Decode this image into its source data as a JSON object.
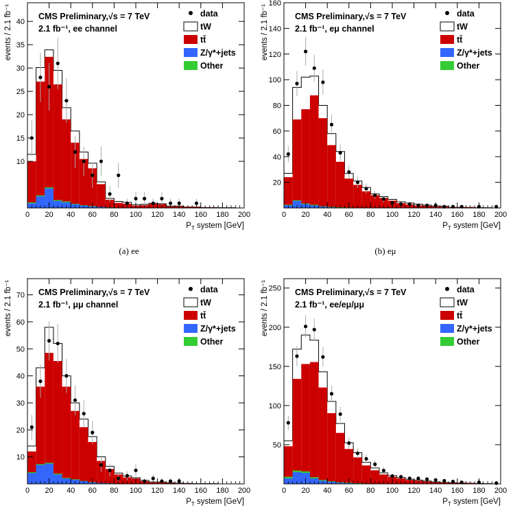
{
  "chart_data": [
    {
      "type": "bar",
      "caption": "(a) ee",
      "title": "CMS Preliminary,√s = 7 TeV",
      "subtitle": "2.1 fb⁻¹, ee channel",
      "xlabel": "P_T system [GeV]",
      "ylabel": "events / 2.1 fb⁻¹",
      "xlim": [
        0,
        200
      ],
      "ylim": [
        0,
        44
      ],
      "xticks": [
        0,
        20,
        40,
        60,
        80,
        100,
        120,
        140,
        160,
        180,
        200
      ],
      "yticks": [
        10,
        15,
        20,
        25,
        30,
        35,
        40
      ],
      "bin_edges": [
        0,
        8,
        16,
        24,
        32,
        40,
        48,
        56,
        64,
        72,
        80,
        88,
        96,
        104,
        112,
        120,
        128,
        136,
        144,
        152,
        160,
        168,
        176,
        184,
        192,
        200
      ],
      "legend": [
        "data",
        "tW",
        "tt̄",
        "Z/γ*+jets",
        "Other"
      ],
      "series": [
        {
          "name": "Z/γ*+jets",
          "color": "#3366ff",
          "values": [
            1.0,
            2.5,
            4.2,
            1.5,
            1.2,
            0.8,
            0.5,
            0.3,
            0.2,
            0.1,
            0.05,
            0,
            0,
            0,
            0,
            0,
            0,
            0,
            0,
            0,
            0,
            0,
            0,
            0,
            0
          ]
        },
        {
          "name": "Other",
          "color": "#33cc33",
          "values": [
            0.2,
            0.2,
            0.2,
            0.2,
            0.2,
            0.1,
            0.1,
            0.1,
            0,
            0,
            0,
            0,
            0,
            0,
            0,
            0,
            0,
            0,
            0,
            0,
            0,
            0,
            0,
            0,
            0
          ]
        },
        {
          "name": "tt̄",
          "color": "#cc0000",
          "values": [
            8.8,
            24.4,
            28.0,
            24.8,
            17.6,
            13.1,
            9.9,
            8.1,
            4.9,
            1.65,
            1.05,
            0.9,
            0.5,
            0.6,
            0.9,
            0.8,
            0.3,
            0.3,
            0.2,
            0.2,
            0.1,
            0.1,
            0.05,
            0.05,
            0
          ]
        },
        {
          "name": "tW",
          "color": "#ffffff",
          "values": [
            1.5,
            3.0,
            1.5,
            3.0,
            2.5,
            2.5,
            1.5,
            1.1,
            0.5,
            0.3,
            0.3,
            0.3,
            0.2,
            0.2,
            0.1,
            0.1,
            0.1,
            0.1,
            0,
            0,
            0,
            0,
            0,
            0,
            0
          ]
        }
      ],
      "data": {
        "name": "data",
        "x": [
          4,
          12,
          20,
          28,
          36,
          44,
          52,
          60,
          68,
          76,
          84,
          92,
          100,
          108,
          116,
          124,
          132,
          140,
          156
        ],
        "y": [
          15,
          28,
          26,
          31,
          23,
          12,
          10,
          7,
          10,
          3,
          7,
          1,
          2,
          2,
          1,
          2,
          1,
          1,
          1
        ]
      }
    },
    {
      "type": "bar",
      "caption": "(b) eμ",
      "title": "CMS Preliminary,√s = 7 TeV",
      "subtitle": "2.1 fb⁻¹, eμ channel",
      "xlabel": "P_T system [GeV]",
      "ylabel": "events / 2.1 fb⁻¹",
      "xlim": [
        0,
        200
      ],
      "ylim": [
        0,
        160
      ],
      "xticks": [
        0,
        20,
        40,
        60,
        80,
        100,
        120,
        140,
        160,
        180,
        200
      ],
      "yticks": [
        20,
        40,
        60,
        80,
        100,
        120,
        140,
        160
      ],
      "bin_edges": [
        0,
        8,
        16,
        24,
        32,
        40,
        48,
        56,
        64,
        72,
        80,
        88,
        96,
        104,
        112,
        120,
        128,
        136,
        144,
        152,
        160,
        168,
        176,
        184,
        192,
        200
      ],
      "legend": [
        "data",
        "tW",
        "tt̄",
        "Z/γ*+jets",
        "Other"
      ],
      "series": [
        {
          "name": "Z/γ*+jets",
          "color": "#3366ff",
          "values": [
            2.0,
            5.5,
            3.0,
            2.0,
            1.0,
            0.5,
            0.3,
            0.2,
            0.1,
            0,
            0,
            0,
            0,
            0,
            0,
            0,
            0,
            0,
            0,
            0,
            0,
            0,
            0,
            0,
            0
          ]
        },
        {
          "name": "Other",
          "color": "#33cc33",
          "values": [
            0.5,
            0.5,
            0.5,
            0.5,
            0.3,
            0.3,
            0.2,
            0.2,
            0.1,
            0.1,
            0,
            0,
            0,
            0,
            0,
            0,
            0,
            0,
            0,
            0,
            0,
            0,
            0,
            0,
            0
          ]
        },
        {
          "name": "tt̄",
          "color": "#cc0000",
          "values": [
            21.5,
            63.0,
            73.5,
            85.3,
            68.7,
            48.2,
            35.5,
            22.5,
            17.8,
            12.9,
            9.9,
            7.8,
            5.7,
            3.8,
            2.8,
            2.0,
            1.7,
            1.0,
            0.9,
            0.5,
            0.5,
            0.5,
            0.2,
            0.2,
            0
          ]
        },
        {
          "name": "tW",
          "color": "#ffffff",
          "values": [
            3.0,
            25.0,
            25.0,
            15.0,
            10.0,
            9.0,
            8.0,
            4.0,
            3.0,
            3.0,
            1.0,
            1.0,
            1.0,
            1.0,
            1.0,
            1.0,
            0.5,
            0.5,
            0.5,
            0,
            0,
            0,
            0,
            0,
            0
          ]
        }
      ],
      "data": {
        "name": "data",
        "x": [
          4,
          12,
          20,
          28,
          36,
          44,
          52,
          60,
          68,
          76,
          84,
          92,
          100,
          108,
          116,
          124,
          132,
          140,
          148,
          156,
          164,
          180,
          196
        ],
        "y": [
          42,
          97,
          122,
          109,
          98,
          65,
          43,
          28,
          20,
          15,
          10,
          7,
          4,
          3,
          3,
          2,
          2,
          2,
          1,
          1,
          1,
          1,
          1
        ]
      }
    },
    {
      "type": "bar",
      "caption": "",
      "title": "CMS Preliminary,√s = 7 TeV",
      "subtitle": "2.1 fb⁻¹, μμ channel",
      "xlabel": "P_T system [GeV]",
      "ylabel": "events / 2.1 fb⁻¹",
      "xlim": [
        0,
        200
      ],
      "ylim": [
        0,
        76
      ],
      "xticks": [
        0,
        20,
        40,
        60,
        80,
        100,
        120,
        140,
        160,
        180,
        200
      ],
      "yticks": [
        10,
        20,
        30,
        40,
        50,
        60,
        70
      ],
      "bin_edges": [
        0,
        8,
        16,
        24,
        32,
        40,
        48,
        56,
        64,
        72,
        80,
        88,
        96,
        104,
        112,
        120,
        128,
        136,
        144,
        152,
        160,
        168,
        176,
        184,
        192,
        200
      ],
      "legend": [
        "data",
        "tW",
        "tt̄",
        "Z/γ*+jets",
        "Other"
      ],
      "series": [
        {
          "name": "Z/γ*+jets",
          "color": "#3366ff",
          "values": [
            4.0,
            7.0,
            7.5,
            3.5,
            2.0,
            1.5,
            1.0,
            0.5,
            0.3,
            0.2,
            0.1,
            0,
            0,
            0,
            0,
            0,
            0,
            0,
            0,
            0,
            0,
            0,
            0,
            0,
            0
          ]
        },
        {
          "name": "Other",
          "color": "#33cc33",
          "values": [
            0.3,
            0.3,
            0.3,
            0.3,
            0.2,
            0.2,
            0.1,
            0.1,
            0,
            0,
            0,
            0,
            0,
            0,
            0,
            0,
            0,
            0,
            0,
            0,
            0,
            0,
            0,
            0,
            0
          ]
        },
        {
          "name": "tt̄",
          "color": "#cc0000",
          "values": [
            7.7,
            28.7,
            40.7,
            41.7,
            33.8,
            25.3,
            19.9,
            14.9,
            8.2,
            5.3,
            3.4,
            2.4,
            2.0,
            1.0,
            0.5,
            0.5,
            0.3,
            0.2,
            0.2,
            0.1,
            0.1,
            0.1,
            0,
            0,
            0
          ]
        },
        {
          "name": "tW",
          "color": "#ffffff",
          "values": [
            2.0,
            7.0,
            9.5,
            6.5,
            4.0,
            3.0,
            3.0,
            2.0,
            1.5,
            1.0,
            0.5,
            0.5,
            0.3,
            0.3,
            0.2,
            0.2,
            0.1,
            0.1,
            0,
            0,
            0,
            0,
            0,
            0,
            0
          ]
        }
      ],
      "data": {
        "name": "data",
        "x": [
          4,
          12,
          20,
          28,
          36,
          44,
          52,
          60,
          68,
          76,
          84,
          92,
          100,
          108,
          116,
          124,
          132,
          140
        ],
        "y": [
          21,
          38,
          53,
          52,
          40,
          31,
          26,
          19,
          7,
          5,
          2,
          3,
          5,
          1,
          2,
          1,
          1,
          1
        ]
      }
    },
    {
      "type": "bar",
      "caption": "",
      "title": "CMS Preliminary,√s = 7 TeV",
      "subtitle": "2.1 fb⁻¹, ee/eμ/μμ",
      "xlabel": "P_T system [GeV]",
      "ylabel": "events / 2.1 fb⁻¹",
      "xlim": [
        0,
        200
      ],
      "ylim": [
        0,
        262
      ],
      "xticks": [
        0,
        20,
        40,
        60,
        80,
        100,
        120,
        140,
        160,
        180,
        200
      ],
      "yticks": [
        50,
        100,
        150,
        200,
        250
      ],
      "bin_edges": [
        0,
        8,
        16,
        24,
        32,
        40,
        48,
        56,
        64,
        72,
        80,
        88,
        96,
        104,
        112,
        120,
        128,
        136,
        144,
        152,
        160,
        168,
        176,
        184,
        192,
        200
      ],
      "legend": [
        "data",
        "tW",
        "tt̄",
        "Z/γ*+jets",
        "Other"
      ],
      "series": [
        {
          "name": "Z/γ*+jets",
          "color": "#3366ff",
          "values": [
            7,
            15,
            14,
            7,
            4,
            2.5,
            1.5,
            1.0,
            0.5,
            0.3,
            0.2,
            0,
            0,
            0,
            0,
            0,
            0,
            0,
            0,
            0,
            0,
            0,
            0,
            0,
            0
          ]
        },
        {
          "name": "Other",
          "color": "#33cc33",
          "values": [
            2,
            2,
            2,
            1.5,
            1,
            0.8,
            0.6,
            0.5,
            0.3,
            0.2,
            0.1,
            0,
            0,
            0,
            0,
            0,
            0,
            0,
            0,
            0,
            0,
            0,
            0,
            0,
            0
          ]
        },
        {
          "name": "tt̄",
          "color": "#cc0000",
          "values": [
            39,
            117,
            137,
            147,
            118,
            87,
            63,
            43,
            33,
            23,
            17,
            12,
            9,
            7,
            5,
            4,
            3,
            2,
            1.5,
            1.2,
            1,
            0.8,
            0.5,
            0.3,
            0
          ]
        },
        {
          "name": "tW",
          "color": "#ffffff",
          "values": [
            7,
            38,
            37,
            28,
            20,
            15,
            12,
            8,
            6,
            4,
            3,
            2,
            1.5,
            1.2,
            1,
            0.8,
            0.6,
            0.5,
            0.3,
            0.2,
            0.1,
            0.1,
            0,
            0,
            0
          ]
        }
      ],
      "data": {
        "name": "data",
        "x": [
          4,
          12,
          20,
          28,
          36,
          44,
          52,
          60,
          68,
          76,
          84,
          92,
          100,
          108,
          116,
          124,
          132,
          140,
          148,
          156,
          164,
          180,
          196
        ],
        "y": [
          78,
          163,
          201,
          197,
          162,
          115,
          89,
          52,
          39,
          32,
          25,
          17,
          10,
          9,
          7,
          7,
          6,
          5,
          4,
          3,
          2,
          2,
          1
        ]
      }
    }
  ]
}
